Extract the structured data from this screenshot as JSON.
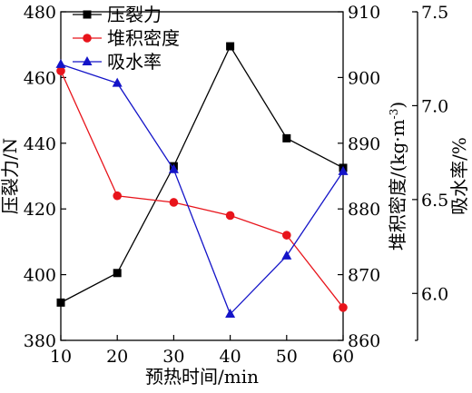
{
  "chart_data": {
    "type": "line",
    "x": [
      10,
      20,
      30,
      40,
      50,
      60
    ],
    "xlabel": "预热时间/min",
    "xlim": [
      10,
      60
    ],
    "xticks": [
      10,
      20,
      30,
      40,
      50,
      60
    ],
    "grid": false,
    "legend_position": "top-left",
    "axes": {
      "left": {
        "label": "压裂力/N",
        "lim": [
          380,
          480
        ],
        "ticks": [
          380,
          400,
          420,
          440,
          460,
          480
        ]
      },
      "middle": {
        "label_main": "堆积密度/(kg·m",
        "label_sup": "-3",
        "label_end": ")",
        "lim": [
          860,
          910
        ],
        "ticks": [
          860,
          870,
          880,
          890,
          900,
          910
        ]
      },
      "right": {
        "label": "吸水率/%",
        "lim": [
          5.75,
          7.5
        ],
        "ticks": [
          6.0,
          6.5,
          7.0,
          7.5
        ]
      }
    },
    "series": [
      {
        "name": "压裂力",
        "axis": "left",
        "color": "#000000",
        "marker": "square",
        "values": [
          391.5,
          400.5,
          433,
          469.5,
          441.5,
          432.5
        ]
      },
      {
        "name": "堆积密度",
        "axis": "middle",
        "color": "#e8141b",
        "marker": "circle",
        "values": [
          901,
          882,
          881,
          879,
          876,
          865
        ]
      },
      {
        "name": "吸水率",
        "axis": "right",
        "color": "#1414c8",
        "marker": "triangle",
        "values": [
          7.22,
          7.12,
          6.66,
          5.89,
          6.2,
          6.65
        ]
      }
    ]
  }
}
